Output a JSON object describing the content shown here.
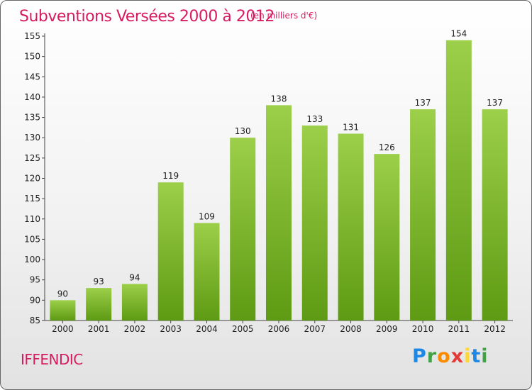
{
  "title": "Subventions Versées 2000 à 2012",
  "subtitle": "(en milliers d'€)",
  "place": "IFFENDIC",
  "logo": {
    "letters": [
      "P",
      "r",
      "o",
      "x",
      "i",
      "t",
      "i"
    ],
    "colors": [
      "#1e88e5",
      "#43a047",
      "#fb8c00",
      "#e53935",
      "#fdd835",
      "#1e88e5",
      "#43a047"
    ]
  },
  "colors": {
    "accent": "#d81b60",
    "bar_top": "#9ccf4a",
    "bar_bottom": "#5e9a13"
  },
  "chart_data": {
    "type": "bar",
    "categories": [
      "2000",
      "2001",
      "2002",
      "2003",
      "2004",
      "2005",
      "2006",
      "2007",
      "2008",
      "2009",
      "2010",
      "2011",
      "2012"
    ],
    "values": [
      90,
      93,
      94,
      119,
      109,
      130,
      138,
      133,
      131,
      126,
      137,
      154,
      137
    ],
    "ylim": [
      85,
      155
    ],
    "yticks": [
      85,
      90,
      95,
      100,
      105,
      110,
      115,
      120,
      125,
      130,
      135,
      140,
      145,
      150,
      155
    ],
    "grid": false,
    "title": "Subventions Versées 2000 à 2012",
    "subtitle": "(en milliers d'€)"
  }
}
